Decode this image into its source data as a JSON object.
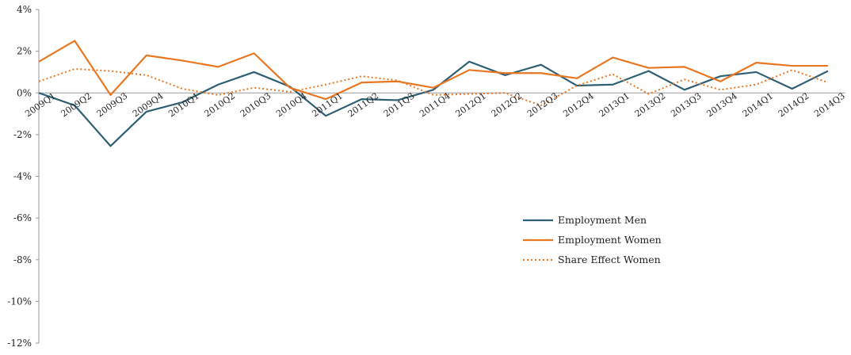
{
  "chart_data": {
    "type": "line",
    "title": "",
    "xlabel": "",
    "ylabel": "",
    "ylim": [
      -12,
      4
    ],
    "yticks": [
      4,
      2,
      0,
      -2,
      -4,
      -6,
      -8,
      -10,
      -12
    ],
    "ytick_labels": [
      "4%",
      "2%",
      "0%",
      "-2%",
      "-4%",
      "-6%",
      "-8%",
      "-10%",
      "-12%"
    ],
    "categories": [
      "2009Q1",
      "2009Q2",
      "2009Q3",
      "2009Q4",
      "2010Q1",
      "2010Q2",
      "2010Q3",
      "2010Q4",
      "2011Q1",
      "2011Q2",
      "2011Q3",
      "2011Q4",
      "2012Q1",
      "2012Q2",
      "2012Q3",
      "2012Q4",
      "2013Q1",
      "2013Q2",
      "2013Q3",
      "2013Q4",
      "2014Q1",
      "2014Q2",
      "2014Q3"
    ],
    "grid": false,
    "legend_position": "center-right",
    "series": [
      {
        "name": "Employment Men",
        "color": "#2e5f73",
        "style": "solid",
        "values": [
          0.0,
          -0.6,
          -2.55,
          -0.9,
          -0.45,
          0.4,
          1.0,
          0.3,
          -1.1,
          -0.3,
          -0.35,
          0.15,
          1.5,
          0.85,
          1.35,
          0.35,
          0.4,
          1.05,
          0.15,
          0.8,
          1.0,
          0.2,
          1.05
        ]
      },
      {
        "name": "Employment Women",
        "color": "#e87722",
        "style": "solid",
        "values": [
          1.5,
          2.5,
          -0.1,
          1.8,
          1.55,
          1.25,
          1.9,
          0.25,
          -0.3,
          0.5,
          0.55,
          0.25,
          1.1,
          0.95,
          0.95,
          0.7,
          1.7,
          1.2,
          1.25,
          0.55,
          1.45,
          1.3,
          1.3
        ]
      },
      {
        "name": "Share Effect Women",
        "color": "#e87722",
        "style": "dotted",
        "values": [
          0.55,
          1.15,
          1.05,
          0.85,
          0.2,
          -0.1,
          0.25,
          0.05,
          0.4,
          0.8,
          0.6,
          -0.1,
          -0.05,
          0.0,
          -0.6,
          0.35,
          0.9,
          -0.05,
          0.65,
          0.15,
          0.4,
          1.1,
          0.5
        ]
      }
    ]
  }
}
